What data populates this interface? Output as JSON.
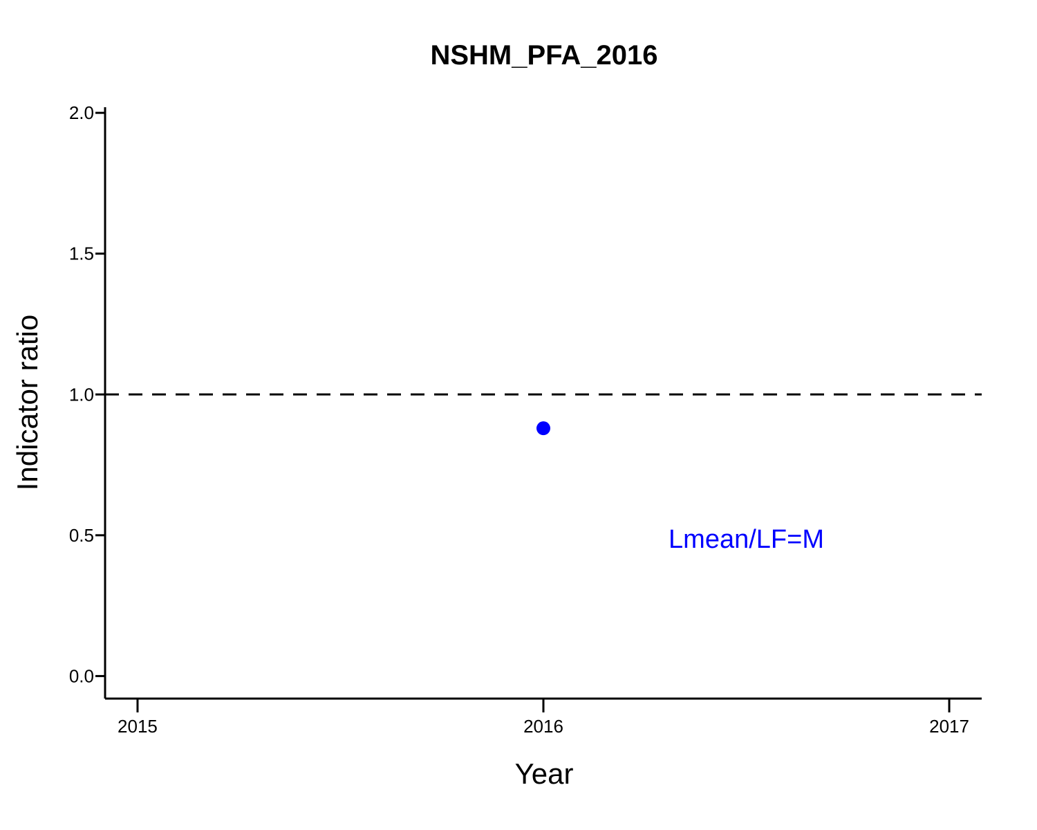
{
  "chart_data": {
    "type": "scatter",
    "title": "NSHM_PFA_2016",
    "xlabel": "Year",
    "ylabel": "Indicator ratio",
    "xlim": [
      2014.92,
      2017.08
    ],
    "ylim": [
      -0.08,
      2.02
    ],
    "xticks": [
      2015,
      2016,
      2017
    ],
    "xtick_labels": [
      "2015",
      "2016",
      "2017"
    ],
    "yticks": [
      0.0,
      0.5,
      1.0,
      1.5,
      2.0
    ],
    "ytick_labels": [
      "0.0",
      "0.5",
      "1.0",
      "1.5",
      "2.0"
    ],
    "series": [
      {
        "x": [
          2016
        ],
        "y": [
          0.88
        ],
        "color": "#0000ff"
      }
    ],
    "reference_line": {
      "y": 1.0,
      "style": "dashed",
      "color": "#000000"
    },
    "annotation": {
      "text": "Lmean/LF=M",
      "x": 2016.5,
      "y": 0.49,
      "color": "#0000ff"
    },
    "grid": false,
    "legend": "none"
  }
}
